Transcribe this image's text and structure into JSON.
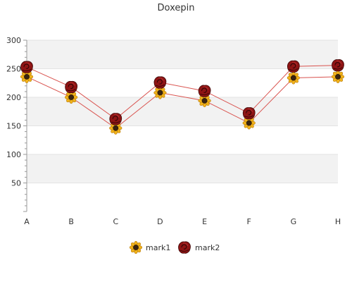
{
  "chart_data": {
    "type": "line",
    "title": "Doxepin",
    "xlabel": "",
    "ylabel": "",
    "categories": [
      "A",
      "B",
      "C",
      "D",
      "E",
      "F",
      "G",
      "H"
    ],
    "ylim": [
      0,
      300
    ],
    "yticks": [
      50,
      100,
      150,
      200,
      250,
      300
    ],
    "grid": true,
    "legend_position": "bottom",
    "series": [
      {
        "name": "mark1",
        "values": [
          236,
          200,
          146,
          208,
          194,
          155,
          234,
          236
        ],
        "marker": "sunflower-icon",
        "color": "#e8a317"
      },
      {
        "name": "mark2",
        "values": [
          253,
          218,
          162,
          226,
          211,
          172,
          254,
          256
        ],
        "marker": "rose-icon",
        "color": "#9b1b1b"
      }
    ],
    "line_color": "#d9534f",
    "band_color": "#f2f2f2"
  }
}
